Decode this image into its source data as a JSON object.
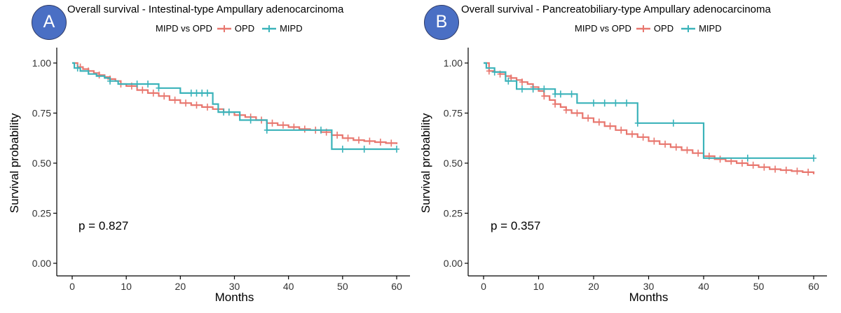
{
  "chart_data": [
    {
      "type": "line",
      "panel_label": "A",
      "title": "Overall survival - Intestinal-type Ampullary adenocarcinoma",
      "legend_title": "MIPD vs OPD",
      "xlabel": "Months",
      "ylabel": "Survival probability",
      "x_ticks": [
        "0",
        "10",
        "20",
        "30",
        "40",
        "50",
        "60"
      ],
      "y_ticks": [
        "0.00",
        "0.25",
        "0.50",
        "0.75",
        "1.00"
      ],
      "xlim": [
        0,
        60
      ],
      "ylim": [
        0,
        1
      ],
      "grid": false,
      "annotation": "p = 0.827",
      "series": [
        {
          "name": "OPD",
          "color": "#e8776f",
          "x": [
            0,
            1,
            2,
            3,
            4,
            5,
            6,
            7,
            8,
            9,
            10,
            12,
            14,
            16,
            18,
            20,
            22,
            24,
            26,
            28,
            30,
            32,
            34,
            36,
            38,
            40,
            42,
            44,
            46,
            48,
            50,
            52,
            54,
            56,
            58,
            60
          ],
          "y": [
            1.0,
            0.98,
            0.97,
            0.96,
            0.95,
            0.94,
            0.93,
            0.92,
            0.91,
            0.895,
            0.885,
            0.865,
            0.85,
            0.835,
            0.815,
            0.8,
            0.79,
            0.78,
            0.77,
            0.755,
            0.74,
            0.73,
            0.715,
            0.7,
            0.69,
            0.68,
            0.67,
            0.665,
            0.655,
            0.64,
            0.625,
            0.615,
            0.61,
            0.605,
            0.6,
            0.595
          ],
          "censor_x": [
            1.5,
            3,
            5,
            7,
            9,
            11,
            13,
            15,
            17,
            19,
            21,
            23,
            25,
            27,
            29,
            31,
            33,
            35,
            37,
            39,
            41,
            43,
            45,
            47,
            49,
            51,
            53,
            55,
            57,
            59
          ]
        },
        {
          "name": "MIPD",
          "color": "#3bb3ba",
          "x": [
            0,
            0.4,
            1.5,
            3,
            4.5,
            6,
            7,
            8.5,
            16,
            20,
            26,
            27,
            31,
            36,
            48,
            60
          ],
          "y": [
            1.0,
            0.975,
            0.96,
            0.945,
            0.935,
            0.925,
            0.91,
            0.895,
            0.875,
            0.85,
            0.795,
            0.755,
            0.715,
            0.665,
            0.57,
            0.57
          ],
          "censor_x": [
            1,
            7,
            12,
            14,
            16,
            22,
            23,
            24,
            25,
            28,
            29,
            33,
            36,
            46,
            50,
            54,
            60
          ]
        }
      ]
    },
    {
      "type": "line",
      "panel_label": "B",
      "title": "Overall survival - Pancreatobiliary-type Ampullary adenocarcinoma",
      "legend_title": "MIPD vs OPD",
      "xlabel": "Months",
      "ylabel": "Survival probability",
      "x_ticks": [
        "0",
        "10",
        "20",
        "30",
        "40",
        "50",
        "60"
      ],
      "y_ticks": [
        "0.00",
        "0.25",
        "0.50",
        "0.75",
        "1.00"
      ],
      "xlim": [
        0,
        60
      ],
      "ylim": [
        0,
        1
      ],
      "grid": false,
      "annotation": "p = 0.357",
      "series": [
        {
          "name": "OPD",
          "color": "#e8776f",
          "x": [
            0,
            1,
            2,
            3,
            4,
            5,
            6,
            7,
            8,
            9,
            10,
            11,
            12,
            13,
            14,
            15,
            16,
            18,
            20,
            22,
            24,
            26,
            28,
            30,
            32,
            34,
            36,
            38,
            40,
            42,
            44,
            46,
            48,
            50,
            52,
            54,
            56,
            58,
            60
          ],
          "y": [
            1.0,
            0.96,
            0.955,
            0.945,
            0.935,
            0.925,
            0.915,
            0.905,
            0.895,
            0.88,
            0.86,
            0.835,
            0.815,
            0.795,
            0.78,
            0.765,
            0.75,
            0.725,
            0.705,
            0.685,
            0.665,
            0.645,
            0.63,
            0.61,
            0.595,
            0.58,
            0.565,
            0.55,
            0.535,
            0.52,
            0.51,
            0.5,
            0.49,
            0.48,
            0.47,
            0.465,
            0.46,
            0.455,
            0.445
          ],
          "censor_x": [
            1,
            3,
            5,
            7,
            9,
            11,
            13,
            15,
            17,
            19,
            21,
            23,
            25,
            27,
            29,
            31,
            33,
            35,
            37,
            39,
            41,
            43,
            45,
            47,
            49,
            51,
            53,
            55,
            57,
            59
          ]
        },
        {
          "name": "MIPD",
          "color": "#3bb3ba",
          "x": [
            0,
            0.5,
            2,
            4,
            6,
            10,
            13,
            17,
            28,
            40,
            60
          ],
          "y": [
            1.0,
            0.975,
            0.955,
            0.91,
            0.87,
            0.87,
            0.845,
            0.8,
            0.7,
            0.525,
            0.525
          ],
          "censor_x": [
            2,
            4.5,
            7,
            9,
            11,
            13,
            14,
            16,
            20,
            22,
            24,
            26,
            28,
            34.5,
            48,
            60
          ]
        }
      ]
    }
  ]
}
